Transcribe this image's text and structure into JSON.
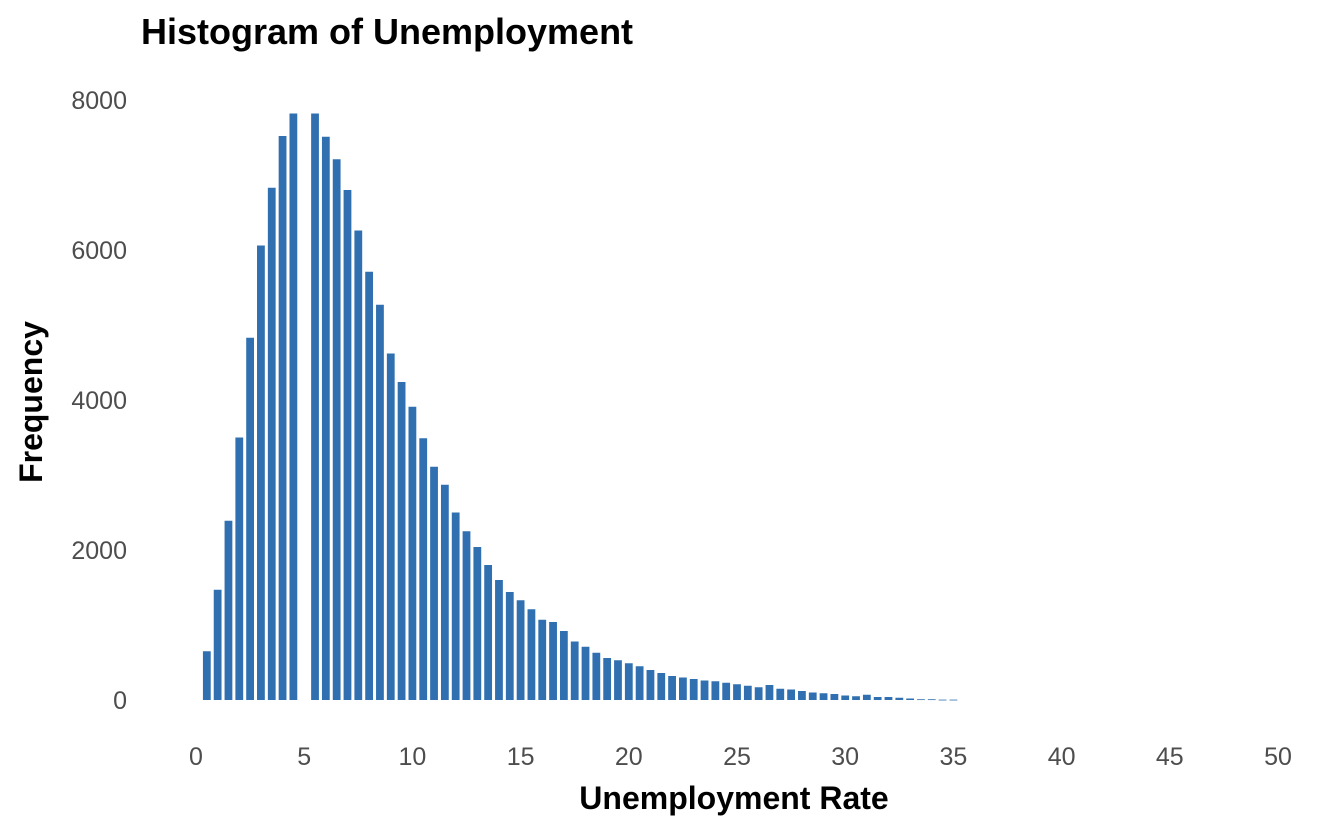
{
  "chart_data": {
    "type": "bar",
    "title": "Histogram of Unemployment",
    "xlabel": "Unemployment Rate",
    "ylabel": "Frequency",
    "xlim": [
      0,
      50
    ],
    "ylim": [
      0,
      8000
    ],
    "xticks": [
      0,
      5,
      10,
      15,
      20,
      25,
      30,
      35,
      40,
      45,
      50
    ],
    "yticks": [
      0,
      2000,
      4000,
      6000,
      8000
    ],
    "grid": false,
    "legend": "none",
    "bar_color": "#3070b0",
    "bin_width": 0.5,
    "x": [
      0.5,
      1.0,
      1.5,
      2.0,
      2.5,
      3.0,
      3.5,
      4.0,
      4.5,
      5.0,
      5.5,
      6.0,
      6.5,
      7.0,
      7.5,
      8.0,
      8.5,
      9.0,
      9.5,
      10.0,
      10.5,
      11.0,
      11.5,
      12.0,
      12.5,
      13.0,
      13.5,
      14.0,
      14.5,
      15.0,
      15.5,
      16.0,
      16.5,
      17.0,
      17.5,
      18.0,
      18.5,
      19.0,
      19.5,
      20.0,
      20.5,
      21.0,
      21.5,
      22.0,
      22.5,
      23.0,
      23.5,
      24.0,
      24.5,
      25.0,
      25.5,
      26.0,
      26.5,
      27.0,
      27.5,
      28.0,
      28.5,
      29.0,
      29.5,
      30.0,
      30.5,
      31.0,
      31.5,
      32.0,
      32.5,
      33.0,
      33.5,
      34.0,
      34.5,
      35.0
    ],
    "values": [
      650,
      1470,
      2390,
      3500,
      4830,
      6060,
      6830,
      7520,
      7820,
      0,
      7820,
      7510,
      7210,
      6800,
      6260,
      5710,
      5270,
      4620,
      4240,
      3910,
      3490,
      3110,
      2870,
      2500,
      2250,
      2040,
      1800,
      1600,
      1440,
      1330,
      1210,
      1070,
      1040,
      920,
      780,
      710,
      630,
      560,
      530,
      490,
      450,
      400,
      360,
      320,
      300,
      280,
      260,
      250,
      230,
      210,
      190,
      170,
      200,
      150,
      140,
      120,
      100,
      90,
      80,
      60,
      50,
      70,
      40,
      40,
      30,
      20,
      10,
      10,
      5,
      5
    ]
  }
}
